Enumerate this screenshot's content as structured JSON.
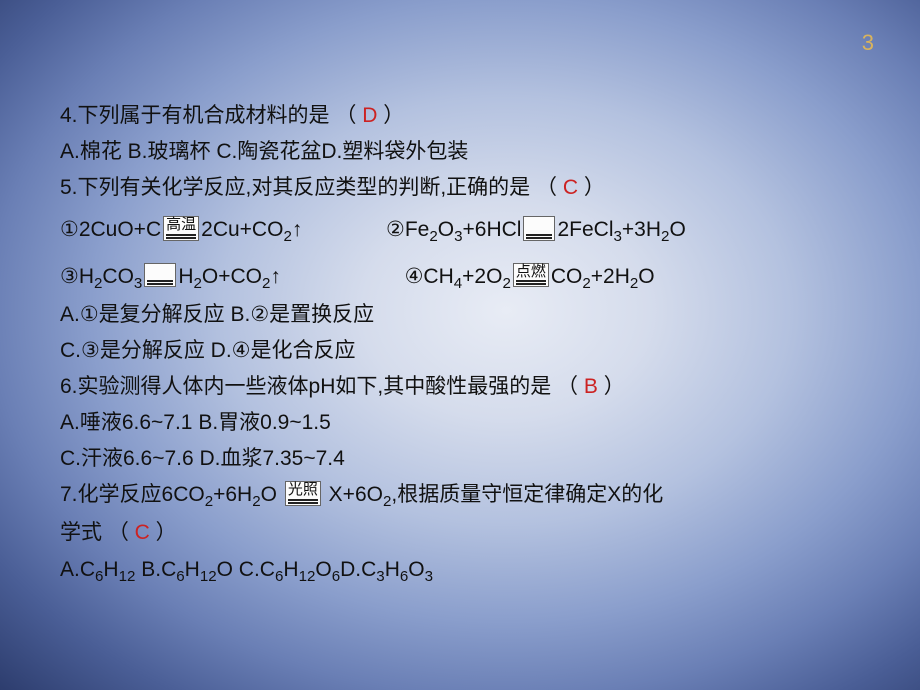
{
  "pageNumber": "3",
  "colors": {
    "answer": "#cc2222",
    "pageNumber": "#d9b35c",
    "text": "#111111"
  },
  "q4": {
    "stem_a": "4.下列属于有机合成材料的是 （  ",
    "answer": "D",
    "stem_b": "  ）",
    "options": "A.棉花   B.玻璃杯     C.陶瓷花盆D.塑料袋外包装"
  },
  "q5": {
    "stem_a": "5.下列有关化学反应,对其反应类型的判断,正确的是 （  ",
    "answer": "C",
    "stem_b": "  ）",
    "eq1": {
      "pre": "①2CuO+C",
      "cond": "高温",
      "post_html": "2Cu+CO<sub>2</sub>↑"
    },
    "eq2": {
      "pre_html": "②Fe<sub>2</sub>O<sub>3</sub>+6HCl",
      "cond": "",
      "post_html": "2FeCl<sub>3</sub>+3H<sub>2</sub>O"
    },
    "eq3": {
      "pre_html": "③H<sub>2</sub>CO<sub>3</sub>",
      "cond": "",
      "post_html": "H<sub>2</sub>O+CO<sub>2</sub>↑"
    },
    "eq4": {
      "pre_html": "④CH<sub>4</sub>+2O<sub>2</sub>",
      "cond": "点燃",
      "post_html": "CO<sub>2</sub>+2H<sub>2</sub>O"
    },
    "optlineA": "A.①是复分解反应    B.②是置换反应",
    "optlineB": "C.③是分解反应       D.④是化合反应"
  },
  "q6": {
    "stem_a": "6.实验测得人体内一些液体pH如下,其中酸性最强的是 （  ",
    "answer": "B",
    "stem_b": "  ）",
    "optlineA": "A.唾液6.6~7.1  B.胃液0.9~1.5",
    "optlineB": "C.汗液6.6~7.6  D.血浆7.35~7.4"
  },
  "q7": {
    "stem_a_html": "7.化学反应6CO<sub>2</sub>+6H<sub>2</sub>O",
    "cond": "光照",
    "stem_b_html": "X+6O<sub>2</sub>,根据质量守恒定律确定X的化",
    "stem_c": "学式 （  ",
    "answer": "C",
    "stem_d": "  ）",
    "options_html": "A.C<sub>6</sub>H<sub>12</sub>  B.C<sub>6</sub>H<sub>12</sub>O     C.C<sub>6</sub>H<sub>12</sub>O<sub>6</sub>D.C<sub>3</sub>H<sub>6</sub>O<sub>3</sub>"
  }
}
